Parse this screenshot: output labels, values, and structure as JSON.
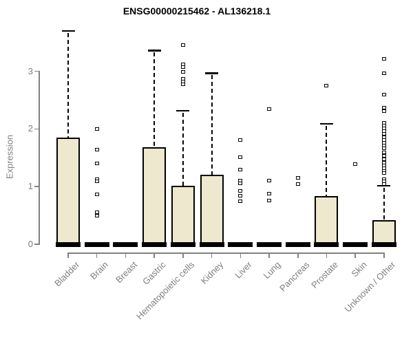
{
  "chart_data": {
    "type": "boxplot",
    "title": "ENSG00000215462 - AL136218.1",
    "ylabel": "Expression",
    "xlabel": "",
    "ylim": [
      0,
      3.75
    ],
    "yticks": [
      0,
      1,
      2,
      3
    ],
    "grid": false,
    "legend": "none",
    "xticklabel_rotation": 45,
    "colors": {
      "box_fill": "#ede8ce",
      "box_border": "#000000",
      "median": "#000000",
      "whisker": "#000000",
      "axis": "#808080",
      "labels": "#7f7f7f",
      "title": "#000000",
      "background": "#ffffff"
    },
    "boxes": [
      {
        "category": "Bladder",
        "min": 0,
        "q1": 0,
        "median": 0,
        "q3": 1.85,
        "upper_whisker": 3.7,
        "outliers": []
      },
      {
        "category": "Brain",
        "min": 0,
        "q1": 0,
        "median": 0,
        "q3": 0,
        "upper_whisker": 0,
        "outliers": [
          2.0,
          1.64,
          1.4,
          1.13,
          1.09,
          0.87,
          0.55,
          0.5
        ]
      },
      {
        "category": "Breast",
        "min": 0,
        "q1": 0,
        "median": 0,
        "q3": 0,
        "upper_whisker": 0,
        "outliers": []
      },
      {
        "category": "Gastric",
        "min": 0,
        "q1": 0,
        "median": 0,
        "q3": 1.68,
        "upper_whisker": 3.36,
        "outliers": []
      },
      {
        "category": "Hematopoietic cells",
        "min": 0,
        "q1": 0,
        "median": 0,
        "q3": 1.01,
        "upper_whisker": 2.32,
        "outliers": [
          3.45,
          3.12,
          3.07,
          2.99,
          2.87,
          2.82,
          2.77
        ]
      },
      {
        "category": "Kidney",
        "min": 0,
        "q1": 0,
        "median": 0,
        "q3": 1.21,
        "upper_whisker": 2.97,
        "outliers": []
      },
      {
        "category": "Liver",
        "min": 0,
        "q1": 0,
        "median": 0,
        "q3": 0,
        "upper_whisker": 0,
        "outliers": [
          1.81,
          1.51,
          1.29,
          1.1,
          1.06,
          0.93,
          0.84,
          0.74
        ]
      },
      {
        "category": "Lung",
        "min": 0,
        "q1": 0,
        "median": 0,
        "q3": 0,
        "upper_whisker": 0,
        "outliers": [
          2.35,
          1.1,
          0.88,
          0.76
        ]
      },
      {
        "category": "Pancreas",
        "min": 0,
        "q1": 0,
        "median": 0,
        "q3": 0,
        "upper_whisker": 0,
        "outliers": [
          1.15,
          1.05
        ]
      },
      {
        "category": "Prostate",
        "min": 0,
        "q1": 0,
        "median": 0,
        "q3": 0.84,
        "upper_whisker": 2.09,
        "outliers": [
          2.75
        ]
      },
      {
        "category": "Skin",
        "min": 0,
        "q1": 0,
        "median": 0,
        "q3": 0,
        "upper_whisker": 0,
        "outliers": [
          1.39
        ]
      },
      {
        "category": "Unknown / Other",
        "min": 0,
        "q1": 0,
        "median": 0,
        "q3": 0.42,
        "upper_whisker": 1.02,
        "outliers": [
          3.22,
          2.96,
          2.6,
          2.37,
          2.31,
          2.11,
          2.06,
          2.01,
          1.96,
          1.91,
          1.86,
          1.81,
          1.76,
          1.71,
          1.67,
          1.59,
          1.53,
          1.47,
          1.42,
          1.37,
          1.32,
          1.27,
          1.23,
          1.13,
          1.09,
          1.05
        ]
      }
    ]
  }
}
